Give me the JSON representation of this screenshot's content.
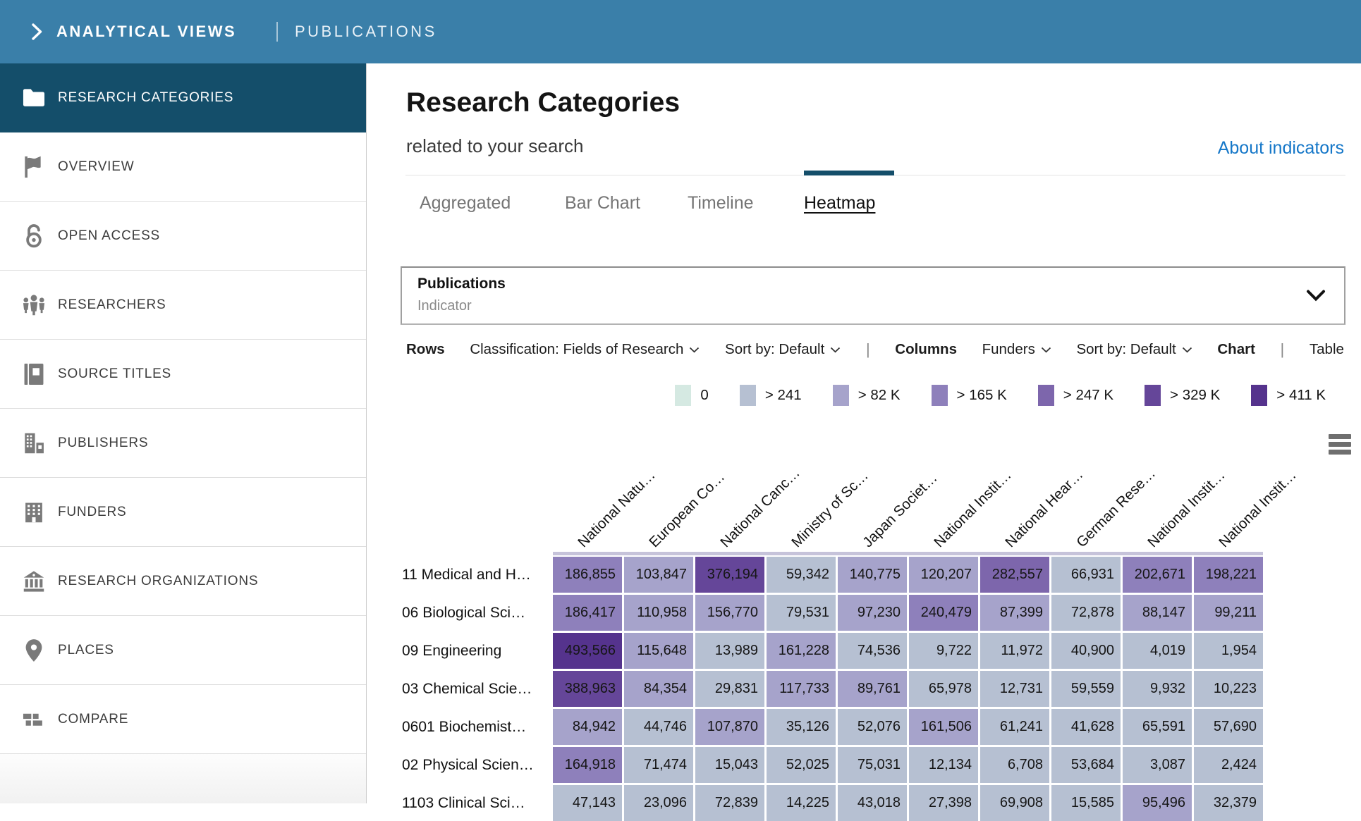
{
  "topbar": {
    "brand": "ANALYTICAL VIEWS",
    "section": "PUBLICATIONS"
  },
  "sidebar": {
    "items": [
      {
        "label": "RESEARCH CATEGORIES",
        "icon": "folder-icon",
        "active": true
      },
      {
        "label": "OVERVIEW",
        "icon": "flag-icon",
        "active": false
      },
      {
        "label": "OPEN ACCESS",
        "icon": "open-lock-icon",
        "active": false
      },
      {
        "label": "RESEARCHERS",
        "icon": "people-icon",
        "active": false
      },
      {
        "label": "SOURCE TITLES",
        "icon": "book-icon",
        "active": false
      },
      {
        "label": "PUBLISHERS",
        "icon": "publisher-building-icon",
        "active": false
      },
      {
        "label": "FUNDERS",
        "icon": "building-icon",
        "active": false
      },
      {
        "label": "RESEARCH ORGANIZATIONS",
        "icon": "bank-icon",
        "active": false
      },
      {
        "label": "PLACES",
        "icon": "map-pin-icon",
        "active": false
      },
      {
        "label": "COMPARE",
        "icon": "compare-icon",
        "active": false
      }
    ]
  },
  "header": {
    "title": "Research Categories",
    "subtitle": "related to your search",
    "about_link": "About indicators"
  },
  "tabs": [
    {
      "label": "Aggregated",
      "active": false
    },
    {
      "label": "Bar Chart",
      "active": false
    },
    {
      "label": "Timeline",
      "active": false
    },
    {
      "label": "Heatmap",
      "active": true
    }
  ],
  "indicator_box": {
    "title": "Publications",
    "subtitle": "Indicator"
  },
  "controls": {
    "rows_label": "Rows",
    "rows_classification": "Classification: Fields of Research",
    "rows_sort": "Sort by: Default",
    "separator": "|",
    "columns_label": "Columns",
    "columns_value": "Funders",
    "columns_sort": "Sort by: Default",
    "view_chart": "Chart",
    "view_table": "Table"
  },
  "chart_data": {
    "type": "heatmap",
    "title": "Publications heatmap: Fields of Research by Funders",
    "legend": [
      {
        "label": "0",
        "color": "#d5e9e2"
      },
      {
        "label": "> 241",
        "color": "#b6c0d2"
      },
      {
        "label": "> 82 K",
        "color": "#a6a3cb"
      },
      {
        "label": "> 165 K",
        "color": "#8e80bb"
      },
      {
        "label": "> 247 K",
        "color": "#7d66ac"
      },
      {
        "label": "> 329 K",
        "color": "#654699"
      },
      {
        "label": "> 411 K",
        "color": "#55338d"
      }
    ],
    "bucket_thresholds": [
      241,
      82261,
      164522,
      246783,
      329044,
      411305
    ],
    "columns": [
      "National Natu…",
      "European Co…",
      "National Canc…",
      "Ministry of Sc…",
      "Japan Societ…",
      "National Instit…",
      "National Hear…",
      "German Rese…",
      "National Instit…",
      "National Instit…"
    ],
    "rows": [
      "11 Medical and H…",
      "06 Biological Sci…",
      "09 Engineering",
      "03 Chemical Scie…",
      "0601 Biochemist…",
      "02 Physical Scien…",
      "1103 Clinical Sci…"
    ],
    "values": [
      [
        "186,855",
        "103,847",
        "376,194",
        "59,342",
        "140,775",
        "120,207",
        "282,557",
        "66,931",
        "202,671",
        "198,221"
      ],
      [
        "186,417",
        "110,958",
        "156,770",
        "79,531",
        "97,230",
        "240,479",
        "87,399",
        "72,878",
        "88,147",
        "99,211"
      ],
      [
        "493,566",
        "115,648",
        "13,989",
        "161,228",
        "74,536",
        "9,722",
        "11,972",
        "40,900",
        "4,019",
        "1,954"
      ],
      [
        "388,963",
        "84,354",
        "29,831",
        "117,733",
        "89,761",
        "65,978",
        "12,731",
        "59,559",
        "9,932",
        "10,223"
      ],
      [
        "84,942",
        "44,746",
        "107,870",
        "35,126",
        "52,076",
        "161,506",
        "61,241",
        "41,628",
        "65,591",
        "57,690"
      ],
      [
        "164,918",
        "71,474",
        "15,043",
        "52,025",
        "75,031",
        "12,134",
        "6,708",
        "53,684",
        "3,087",
        "2,424"
      ],
      [
        "47,143",
        "23,096",
        "72,839",
        "14,225",
        "43,018",
        "27,398",
        "69,908",
        "15,585",
        "95,496",
        "32,379"
      ]
    ]
  }
}
